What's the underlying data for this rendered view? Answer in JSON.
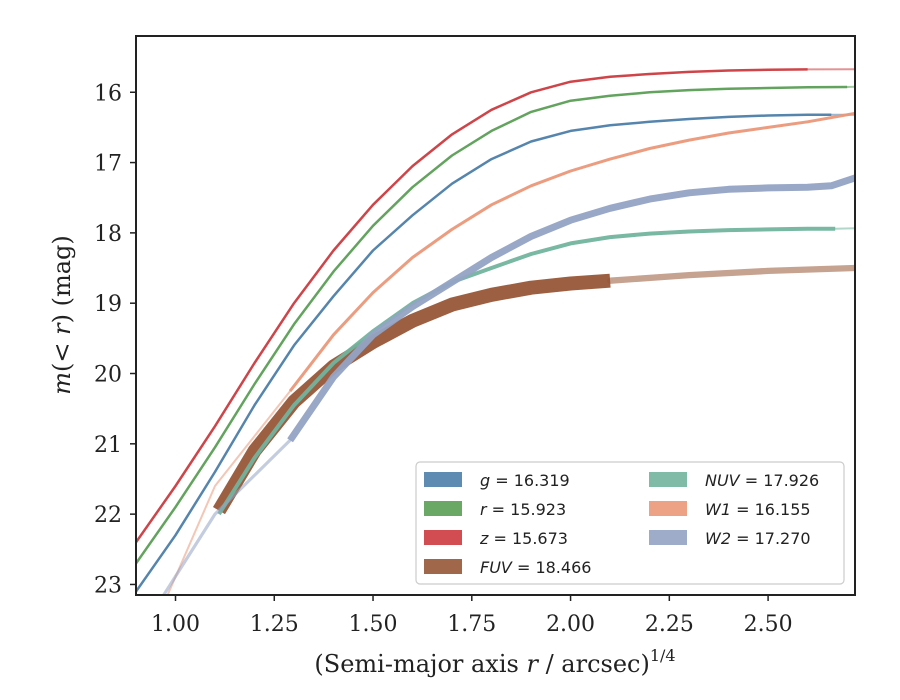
{
  "chart_data": {
    "type": "line",
    "xlabel": "(Semi-major axis r / arcsec)",
    "xlabel_parts": {
      "pre": "(Semi-major axis ",
      "var": "r",
      "post": " / arcsec)",
      "sup": "1/4"
    },
    "ylabel_parts": {
      "m": "m",
      "open": "(",
      "var": "< r",
      "close": ")",
      "unit": " (mag)"
    },
    "xlim": [
      0.9,
      2.72
    ],
    "ylim": [
      23.15,
      15.2
    ],
    "y_inverted": true,
    "x_ticks": [
      "1.00",
      "1.25",
      "1.50",
      "1.75",
      "2.00",
      "2.25",
      "2.50"
    ],
    "y_ticks": [
      "16",
      "17",
      "18",
      "19",
      "20",
      "21",
      "22",
      "23"
    ],
    "legend_position": "lower-right",
    "series": [
      {
        "name": "g = 16.319",
        "label_var": "g",
        "label_val": "= 16.319",
        "color": "#4c7ea9",
        "width": 2.5,
        "points": [
          [
            0.9,
            23.1
          ],
          [
            1.0,
            22.3
          ],
          [
            1.1,
            21.4
          ],
          [
            1.2,
            20.45
          ],
          [
            1.3,
            19.6
          ],
          [
            1.4,
            18.9
          ],
          [
            1.5,
            18.25
          ],
          [
            1.6,
            17.75
          ],
          [
            1.7,
            17.3
          ],
          [
            1.8,
            16.95
          ],
          [
            1.9,
            16.7
          ],
          [
            2.0,
            16.55
          ],
          [
            2.1,
            16.47
          ],
          [
            2.2,
            16.42
          ],
          [
            2.3,
            16.38
          ],
          [
            2.4,
            16.35
          ],
          [
            2.5,
            16.33
          ],
          [
            2.6,
            16.32
          ],
          [
            2.66,
            16.32
          ]
        ],
        "extension": [
          [
            2.66,
            16.32
          ],
          [
            2.72,
            16.319
          ]
        ]
      },
      {
        "name": "r = 15.923",
        "label_var": "r",
        "label_val": "= 15.923",
        "color": "#5a9e55",
        "width": 2.5,
        "points": [
          [
            0.9,
            22.7
          ],
          [
            1.0,
            21.9
          ],
          [
            1.1,
            21.05
          ],
          [
            1.2,
            20.15
          ],
          [
            1.3,
            19.3
          ],
          [
            1.4,
            18.55
          ],
          [
            1.5,
            17.9
          ],
          [
            1.6,
            17.35
          ],
          [
            1.7,
            16.9
          ],
          [
            1.8,
            16.55
          ],
          [
            1.9,
            16.28
          ],
          [
            2.0,
            16.12
          ],
          [
            2.1,
            16.05
          ],
          [
            2.2,
            16.0
          ],
          [
            2.3,
            15.97
          ],
          [
            2.4,
            15.95
          ],
          [
            2.5,
            15.94
          ],
          [
            2.6,
            15.93
          ],
          [
            2.7,
            15.925
          ]
        ],
        "extension": [
          [
            2.7,
            15.925
          ],
          [
            2.72,
            15.923
          ]
        ]
      },
      {
        "name": "z = 15.673",
        "label_var": "z",
        "label_val": "= 15.673",
        "color": "#cc3a3e",
        "width": 2.5,
        "points": [
          [
            0.9,
            22.4
          ],
          [
            1.0,
            21.6
          ],
          [
            1.1,
            20.75
          ],
          [
            1.2,
            19.85
          ],
          [
            1.3,
            19.0
          ],
          [
            1.4,
            18.25
          ],
          [
            1.5,
            17.6
          ],
          [
            1.6,
            17.05
          ],
          [
            1.7,
            16.6
          ],
          [
            1.8,
            16.25
          ],
          [
            1.9,
            16.0
          ],
          [
            2.0,
            15.85
          ],
          [
            2.1,
            15.78
          ],
          [
            2.2,
            15.74
          ],
          [
            2.3,
            15.71
          ],
          [
            2.4,
            15.69
          ],
          [
            2.5,
            15.68
          ],
          [
            2.6,
            15.675
          ]
        ],
        "extension": [
          [
            2.6,
            15.675
          ],
          [
            2.72,
            15.673
          ]
        ]
      },
      {
        "name": "FUV = 18.466",
        "label_var": "FUV",
        "label_val": "= 18.466",
        "color": "#975637",
        "width": 14,
        "points": [
          [
            1.11,
            21.95
          ],
          [
            1.2,
            21.1
          ],
          [
            1.3,
            20.4
          ],
          [
            1.4,
            19.9
          ],
          [
            1.5,
            19.55
          ],
          [
            1.6,
            19.25
          ],
          [
            1.7,
            19.02
          ],
          [
            1.8,
            18.88
          ],
          [
            1.9,
            18.78
          ],
          [
            2.0,
            18.72
          ],
          [
            2.1,
            18.68
          ]
        ],
        "extension": [
          [
            2.1,
            18.68
          ],
          [
            2.3,
            18.6
          ],
          [
            2.5,
            18.54
          ],
          [
            2.72,
            18.5
          ]
        ]
      },
      {
        "name": "NUV = 17.926",
        "label_var": "NUV",
        "label_val": "= 17.926",
        "color": "#72b49e",
        "width": 4,
        "points": [
          [
            1.11,
            22.0
          ],
          [
            1.2,
            21.2
          ],
          [
            1.3,
            20.45
          ],
          [
            1.4,
            19.85
          ],
          [
            1.5,
            19.4
          ],
          [
            1.6,
            19.0
          ],
          [
            1.7,
            18.7
          ],
          [
            1.8,
            18.5
          ],
          [
            1.9,
            18.3
          ],
          [
            2.0,
            18.15
          ],
          [
            2.1,
            18.06
          ],
          [
            2.2,
            18.01
          ],
          [
            2.3,
            17.98
          ],
          [
            2.4,
            17.96
          ],
          [
            2.5,
            17.95
          ],
          [
            2.6,
            17.94
          ],
          [
            2.67,
            17.94
          ]
        ],
        "extension": [
          [
            2.67,
            17.94
          ],
          [
            2.72,
            17.935
          ]
        ]
      },
      {
        "name": "W1 = 16.155",
        "label_var": "W1",
        "label_val": "= 16.155",
        "color": "#eb9778",
        "width": 3,
        "points": [
          [
            1.29,
            20.25
          ],
          [
            1.4,
            19.45
          ],
          [
            1.5,
            18.85
          ],
          [
            1.6,
            18.35
          ],
          [
            1.7,
            17.95
          ],
          [
            1.8,
            17.6
          ],
          [
            1.9,
            17.33
          ],
          [
            2.0,
            17.12
          ],
          [
            2.1,
            16.95
          ],
          [
            2.2,
            16.8
          ],
          [
            2.3,
            16.68
          ],
          [
            2.4,
            16.58
          ],
          [
            2.5,
            16.5
          ],
          [
            2.6,
            16.42
          ],
          [
            2.72,
            16.3
          ]
        ],
        "extension": [
          [
            1.29,
            20.25
          ],
          [
            1.1,
            21.6
          ],
          [
            0.98,
            23.15
          ]
        ]
      },
      {
        "name": "W2 = 17.270",
        "label_var": "W2",
        "label_val": "= 17.270",
        "color": "#93a3c4",
        "width": 7,
        "points": [
          [
            1.29,
            20.95
          ],
          [
            1.4,
            20.05
          ],
          [
            1.5,
            19.45
          ],
          [
            1.6,
            19.05
          ],
          [
            1.7,
            18.7
          ],
          [
            1.8,
            18.35
          ],
          [
            1.9,
            18.05
          ],
          [
            2.0,
            17.82
          ],
          [
            2.1,
            17.65
          ],
          [
            2.2,
            17.52
          ],
          [
            2.3,
            17.43
          ],
          [
            2.4,
            17.38
          ],
          [
            2.5,
            17.36
          ],
          [
            2.6,
            17.35
          ],
          [
            2.66,
            17.33
          ],
          [
            2.72,
            17.22
          ]
        ],
        "extension": [
          [
            1.29,
            20.95
          ],
          [
            1.1,
            22.0
          ],
          [
            0.97,
            23.15
          ]
        ]
      }
    ]
  }
}
